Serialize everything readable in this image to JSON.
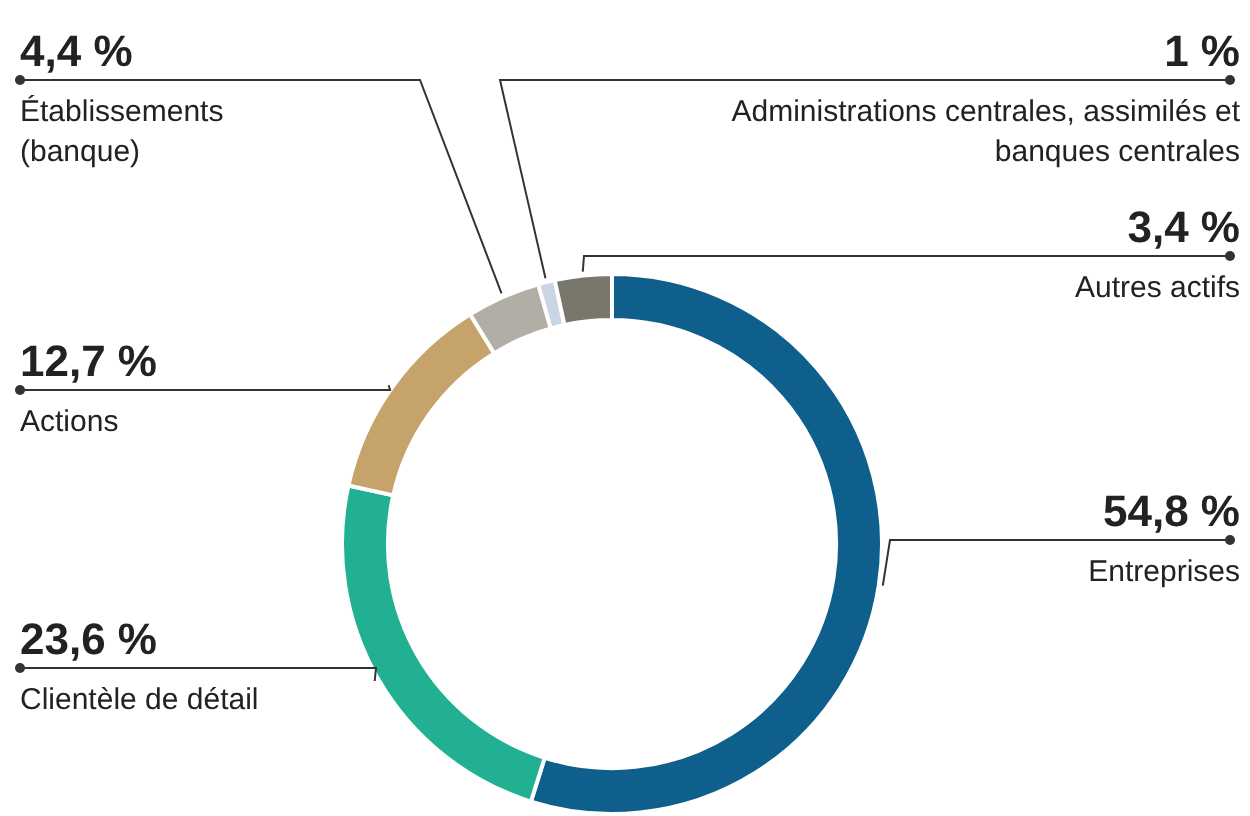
{
  "chart_data": {
    "type": "donut",
    "categories": [
      "Entreprises",
      "Clientèle de détail",
      "Actions",
      "Établissements (banque)",
      "Administrations centrales, assimilés et banques centrales",
      "Autres actifs"
    ],
    "values": [
      54.8,
      23.6,
      12.7,
      4.4,
      1,
      3.4
    ],
    "colors": [
      "#0f5f8c",
      "#21b092",
      "#c6a36b",
      "#b1aea5",
      "#c9d5e2",
      "#79766b"
    ],
    "value_labels": [
      "54,8 %",
      "23,6 %",
      "12,7 %",
      "4,4 %",
      "1 %",
      "3,4 %"
    ],
    "legend": false
  }
}
